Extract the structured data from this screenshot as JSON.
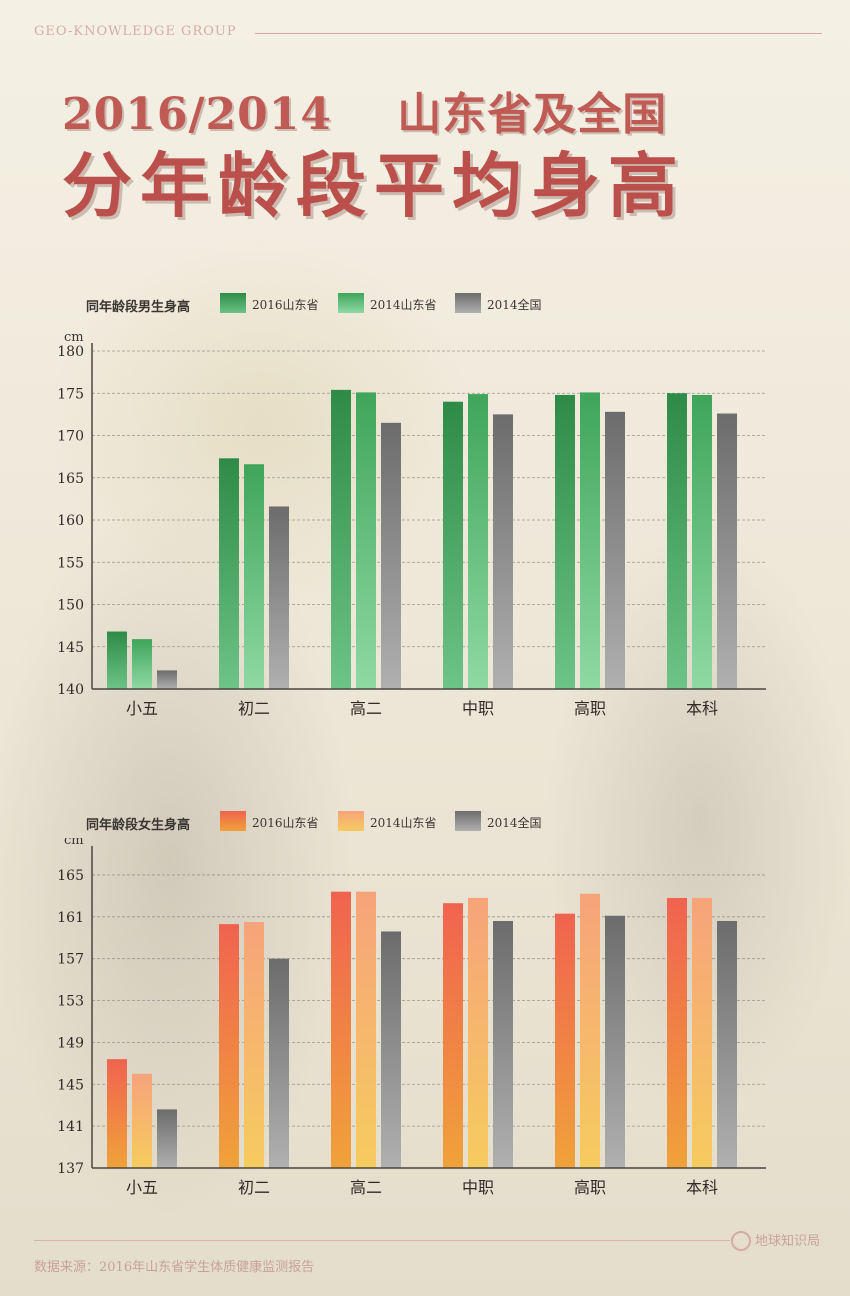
{
  "header": {
    "brand": "GEO-KNOWLEDGE GROUP",
    "title_line1": "2016/2014    山东省及全国",
    "title_line2": "分年龄段平均身高"
  },
  "footer": {
    "source": "数据来源：2016年山东省学生体质健康监测报告",
    "logo_text": "地球知识局"
  },
  "colors": {
    "title": "#bb4f4b",
    "male_2016": [
      "#2e8b47",
      "#6cc486"
    ],
    "male_2014": [
      "#3fa55a",
      "#8fd9a3"
    ],
    "national": [
      "#6c6c6c",
      "#b0b0b0"
    ],
    "female_2016": [
      "#f0634f",
      "#f0a23a"
    ],
    "female_2014": [
      "#f6a37a",
      "#f6cc5e"
    ]
  },
  "chart_data": [
    {
      "type": "bar",
      "title": "同年龄段男生身高",
      "ylabel": "cm",
      "ylim": [
        140,
        180
      ],
      "yticks": [
        140,
        145,
        150,
        155,
        160,
        165,
        170,
        175,
        180
      ],
      "grid": true,
      "legend_position": "top",
      "categories": [
        "小五",
        "初二",
        "高二",
        "中职",
        "高职",
        "本科"
      ],
      "series": [
        {
          "name": "2016山东省",
          "values": [
            146.8,
            167.3,
            175.4,
            174.0,
            174.8,
            175.0
          ]
        },
        {
          "name": "2014山东省",
          "values": [
            145.9,
            166.6,
            175.1,
            174.9,
            175.1,
            174.8
          ]
        },
        {
          "name": "2014全国",
          "values": [
            142.2,
            161.6,
            171.5,
            172.5,
            172.8,
            172.6
          ]
        }
      ]
    },
    {
      "type": "bar",
      "title": "同年龄段女生身高",
      "ylabel": "cm",
      "ylim": [
        137,
        167
      ],
      "yticks": [
        137,
        141,
        145,
        149,
        153,
        157,
        161,
        165
      ],
      "grid": true,
      "legend_position": "top",
      "categories": [
        "小五",
        "初二",
        "高二",
        "中职",
        "高职",
        "本科"
      ],
      "series": [
        {
          "name": "2016山东省",
          "values": [
            147.4,
            160.3,
            163.4,
            162.3,
            161.3,
            162.8
          ]
        },
        {
          "name": "2014山东省",
          "values": [
            146.0,
            160.5,
            163.4,
            162.8,
            163.2,
            162.8
          ]
        },
        {
          "name": "2014全国",
          "values": [
            142.6,
            157.0,
            159.6,
            160.6,
            161.1,
            160.6
          ]
        }
      ]
    }
  ]
}
